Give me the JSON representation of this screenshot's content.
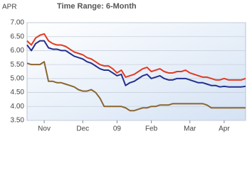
{
  "chart_data": {
    "type": "line",
    "title": "Time Range: 6-Month",
    "y_label": "APR",
    "categories": [
      null,
      null,
      null,
      null,
      "Nov",
      null,
      null,
      null,
      null,
      null,
      null,
      null,
      null,
      "Dec",
      null,
      null,
      null,
      null,
      null,
      null,
      null,
      "09",
      null,
      null,
      null,
      null,
      null,
      null,
      null,
      "Feb",
      null,
      null,
      null,
      null,
      null,
      null,
      null,
      null,
      "Mar",
      null,
      null,
      null,
      null,
      null,
      null,
      null,
      "Apr",
      null,
      null,
      null,
      null,
      null
    ],
    "series": [
      {
        "color": "#e03a24",
        "values": [
          6.35,
          6.2,
          6.45,
          6.55,
          6.6,
          6.35,
          6.25,
          6.2,
          6.2,
          6.15,
          6.05,
          5.95,
          5.9,
          5.85,
          5.75,
          5.7,
          5.6,
          5.5,
          5.45,
          5.45,
          5.35,
          5.2,
          5.3,
          5.05,
          5.1,
          5.15,
          5.25,
          5.35,
          5.4,
          5.25,
          5.3,
          5.35,
          5.25,
          5.2,
          5.2,
          5.25,
          5.25,
          5.3,
          5.2,
          5.15,
          5.1,
          5.05,
          5.05,
          5.0,
          4.95,
          4.95,
          5.0,
          4.95,
          4.95,
          4.95,
          4.95,
          5.0
        ]
      },
      {
        "color": "#22308c",
        "values": [
          6.2,
          6.0,
          6.25,
          6.35,
          6.35,
          6.1,
          6.05,
          6.05,
          6.0,
          6.0,
          5.9,
          5.8,
          5.75,
          5.7,
          5.6,
          5.55,
          5.45,
          5.35,
          5.3,
          5.3,
          5.2,
          5.1,
          5.15,
          4.75,
          4.85,
          4.9,
          5.0,
          5.1,
          5.15,
          5.0,
          5.05,
          5.1,
          5.0,
          4.95,
          4.95,
          5.0,
          5.0,
          5.0,
          4.95,
          4.9,
          4.85,
          4.85,
          4.8,
          4.75,
          4.75,
          4.7,
          4.72,
          4.7,
          4.7,
          4.7,
          4.7,
          4.72
        ]
      },
      {
        "color": "#8a6630",
        "values": [
          5.55,
          5.5,
          5.5,
          5.5,
          5.6,
          4.9,
          4.9,
          4.85,
          4.85,
          4.8,
          4.75,
          4.7,
          4.6,
          4.55,
          4.55,
          4.6,
          4.5,
          4.3,
          4.0,
          4.0,
          4.0,
          4.0,
          4.0,
          3.95,
          3.85,
          3.85,
          3.9,
          3.95,
          3.95,
          4.0,
          4.0,
          4.05,
          4.05,
          4.05,
          4.1,
          4.1,
          4.1,
          4.1,
          4.1,
          4.1,
          4.1,
          4.1,
          4.05,
          3.95,
          3.95,
          3.95,
          3.95,
          3.95,
          3.95,
          3.95,
          3.95,
          3.95
        ]
      }
    ],
    "ylim": [
      3.5,
      7.0
    ],
    "yticks": [
      {
        "value": 3.5,
        "label": "3.50"
      },
      {
        "value": 4.0,
        "label": "4.00"
      },
      {
        "value": 4.5,
        "label": "4.50"
      },
      {
        "value": 5.0,
        "label": "5.00"
      },
      {
        "value": 5.5,
        "label": "5.50"
      },
      {
        "value": 6.0,
        "label": "6.00"
      },
      {
        "value": 6.5,
        "label": "6.50"
      },
      {
        "value": 7.0,
        "label": "7.00"
      }
    ],
    "grid": true
  }
}
